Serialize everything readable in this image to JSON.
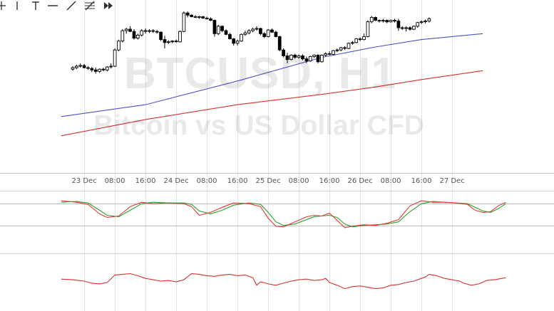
{
  "toolbar": {
    "tools": [
      {
        "name": "crosshair-icon"
      },
      {
        "name": "vertical-line-icon"
      },
      {
        "name": "horizontal-line-icon"
      },
      {
        "name": "trend-line-icon"
      },
      {
        "name": "fibonacci-icon"
      },
      {
        "name": "fast-forward-icon"
      }
    ]
  },
  "watermark": {
    "symbol": "BTCUSD, H1",
    "description": "Bitcoin vs US Dollar CFD"
  },
  "colors": {
    "up_candle": "#ffffff",
    "down_candle": "#000000",
    "sma_fast": "#5050c8",
    "sma_slow": "#d83030",
    "stoch_k": "#e03a3a",
    "stoch_d": "#2ea02e",
    "rsi": "#d83030",
    "grid": "#e4e4e4"
  },
  "chart_data": {
    "type": "candlestick",
    "symbol": "BTCUSD",
    "timeframe": "H1",
    "x_tick_labels": [
      "23 Dec",
      "08:00",
      "16:00",
      "24 Dec",
      "08:00",
      "16:00",
      "25 Dec",
      "08:00",
      "16:00",
      "26 Dec",
      "08:00",
      "16:00",
      "27 Dec"
    ],
    "x_tick_hours": [
      24,
      32,
      40,
      48,
      56,
      64,
      72,
      80,
      88,
      96,
      104,
      112,
      120
    ],
    "price_ylim": [
      0,
      100
    ],
    "candles_hour_start": 21,
    "candles": [
      [
        60,
        62,
        59,
        61
      ],
      [
        61,
        63,
        60,
        62
      ],
      [
        62,
        64,
        61,
        62.5
      ],
      [
        62.5,
        63.5,
        60.5,
        61
      ],
      [
        61,
        62,
        59.5,
        60.5
      ],
      [
        60.5,
        61.5,
        58,
        59.5
      ],
      [
        59.5,
        61,
        57,
        58.5
      ],
      [
        58.5,
        60.5,
        57.5,
        60
      ],
      [
        60,
        61,
        58.5,
        59.5
      ],
      [
        59.5,
        62,
        58.5,
        61.5
      ],
      [
        61.5,
        64,
        60.5,
        62
      ],
      [
        62,
        74,
        61.5,
        73
      ],
      [
        73,
        80,
        72,
        79
      ],
      [
        79,
        87,
        78,
        86
      ],
      [
        86,
        88,
        84,
        87
      ],
      [
        87,
        89,
        85,
        85.5
      ],
      [
        85.5,
        87,
        80,
        81
      ],
      [
        81,
        84,
        80,
        83
      ],
      [
        83,
        87,
        82,
        86
      ],
      [
        86,
        87.5,
        84,
        85.5
      ],
      [
        85.5,
        87,
        84.5,
        86
      ],
      [
        86,
        87,
        84.5,
        85.5
      ],
      [
        85.5,
        86.5,
        84,
        85
      ],
      [
        85,
        85.5,
        79,
        80
      ],
      [
        80,
        82.5,
        74,
        78
      ],
      [
        78,
        79.5,
        77,
        78.5
      ],
      [
        78.5,
        79.5,
        77.5,
        79
      ],
      [
        79,
        80,
        78,
        78.5
      ],
      [
        78.5,
        86,
        78,
        85.5
      ],
      [
        85.5,
        99,
        85,
        98
      ],
      [
        98,
        99,
        95,
        96.5
      ],
      [
        96.5,
        97,
        95,
        95.5
      ],
      [
        95.5,
        96.5,
        94.5,
        95
      ],
      [
        95,
        96,
        94,
        95.5
      ],
      [
        95.5,
        96,
        94,
        94.5
      ],
      [
        94.5,
        95.5,
        93.5,
        94
      ],
      [
        94,
        95,
        92.5,
        93
      ],
      [
        93,
        93.5,
        82,
        84
      ],
      [
        84,
        90,
        83,
        89
      ],
      [
        89,
        89.5,
        85,
        86
      ],
      [
        86,
        87,
        83,
        83.5
      ],
      [
        83.5,
        84.5,
        80,
        80.5
      ],
      [
        80.5,
        81,
        76,
        77.5
      ],
      [
        77.5,
        80,
        76,
        79
      ],
      [
        79,
        84,
        78.5,
        83.5
      ],
      [
        83.5,
        86,
        82.5,
        84.5
      ],
      [
        84.5,
        87,
        83.5,
        86
      ],
      [
        86,
        88,
        85,
        87
      ],
      [
        87,
        89,
        86,
        87.5
      ],
      [
        87.5,
        88,
        83,
        84
      ],
      [
        84,
        85,
        81,
        82
      ],
      [
        82,
        87,
        81.5,
        86.5
      ],
      [
        86.5,
        87.5,
        84.5,
        85
      ],
      [
        85,
        86,
        81.5,
        82
      ],
      [
        82,
        82.5,
        72,
        73
      ],
      [
        73,
        74,
        68,
        69
      ],
      [
        69,
        71,
        64,
        66.5
      ],
      [
        66.5,
        70,
        66,
        69.5
      ],
      [
        69.5,
        70.5,
        67,
        68
      ],
      [
        68,
        70,
        67,
        69
      ],
      [
        69,
        70,
        66,
        67
      ],
      [
        67,
        68.5,
        64,
        65.5
      ],
      [
        65.5,
        69,
        65,
        68.5
      ],
      [
        68.5,
        70,
        67.5,
        69.5
      ],
      [
        69.5,
        70,
        64,
        65
      ],
      [
        65,
        70,
        64.5,
        69.5
      ],
      [
        69.5,
        71.5,
        68.5,
        70.5
      ],
      [
        70.5,
        72,
        69.5,
        70
      ],
      [
        70,
        73,
        69.5,
        72.5
      ],
      [
        72.5,
        74,
        71.5,
        73
      ],
      [
        73,
        75,
        72,
        74.5
      ],
      [
        74.5,
        75.5,
        73,
        74
      ],
      [
        74,
        78,
        73.5,
        77.5
      ],
      [
        77.5,
        79,
        76.5,
        78
      ],
      [
        78,
        81,
        77.5,
        80.5
      ],
      [
        80.5,
        81.5,
        79,
        80
      ],
      [
        80,
        84,
        79.5,
        82
      ],
      [
        82,
        93,
        81.5,
        92
      ],
      [
        92,
        96,
        91,
        95
      ],
      [
        95,
        95.5,
        92.5,
        93
      ],
      [
        93,
        93.5,
        91.5,
        92.5
      ],
      [
        92.5,
        94,
        91.5,
        93
      ],
      [
        93,
        93.5,
        91,
        92
      ],
      [
        92,
        93.5,
        91.5,
        93
      ],
      [
        93,
        94,
        91.5,
        92.5
      ],
      [
        92.5,
        94,
        86,
        88
      ],
      [
        88,
        89,
        86.5,
        87.5
      ],
      [
        87.5,
        89,
        85.5,
        88
      ],
      [
        88,
        89,
        86,
        87
      ],
      [
        87,
        89.5,
        86.5,
        89
      ],
      [
        89,
        92,
        88,
        91.5
      ],
      [
        91.5,
        93,
        90.5,
        92
      ],
      [
        92,
        93.5,
        91,
        92.5
      ],
      [
        92.5,
        95,
        91.5,
        94
      ]
    ],
    "sma_fast": {
      "name": "",
      "points": [
        [
          18,
          28
        ],
        [
          40,
          36
        ],
        [
          64,
          52
        ],
        [
          86,
          68
        ],
        [
          100,
          75
        ],
        [
          112,
          80
        ],
        [
          128,
          84
        ]
      ]
    },
    "sma_slow": {
      "name": "",
      "points": [
        [
          18,
          15
        ],
        [
          40,
          26
        ],
        [
          64,
          36
        ],
        [
          86,
          43
        ],
        [
          100,
          48
        ],
        [
          112,
          53
        ],
        [
          128,
          59
        ]
      ]
    },
    "stochastic": {
      "ylim": [
        0,
        100
      ],
      "levels": [
        20,
        80
      ],
      "k": [
        [
          18,
          88
        ],
        [
          22,
          84
        ],
        [
          25,
          78
        ],
        [
          28,
          52
        ],
        [
          30,
          42
        ],
        [
          33,
          46
        ],
        [
          36,
          72
        ],
        [
          39,
          84
        ],
        [
          42,
          80
        ],
        [
          46,
          82
        ],
        [
          50,
          80
        ],
        [
          52,
          72
        ],
        [
          54,
          48
        ],
        [
          57,
          56
        ],
        [
          60,
          70
        ],
        [
          63,
          82
        ],
        [
          67,
          80
        ],
        [
          70,
          72
        ],
        [
          72,
          40
        ],
        [
          74,
          18
        ],
        [
          76,
          16
        ],
        [
          79,
          30
        ],
        [
          82,
          44
        ],
        [
          84,
          48
        ],
        [
          86,
          46
        ],
        [
          88,
          54
        ],
        [
          90,
          34
        ],
        [
          92,
          14
        ],
        [
          94,
          18
        ],
        [
          97,
          22
        ],
        [
          100,
          20
        ],
        [
          103,
          26
        ],
        [
          106,
          36
        ],
        [
          109,
          74
        ],
        [
          112,
          88
        ],
        [
          115,
          84
        ],
        [
          118,
          84
        ],
        [
          121,
          82
        ],
        [
          124,
          78
        ],
        [
          126,
          62
        ],
        [
          128,
          56
        ],
        [
          130,
          58
        ],
        [
          132,
          74
        ],
        [
          134,
          84
        ]
      ],
      "d": [
        [
          18,
          84
        ],
        [
          22,
          86
        ],
        [
          25,
          82
        ],
        [
          28,
          62
        ],
        [
          30,
          48
        ],
        [
          33,
          44
        ],
        [
          36,
          62
        ],
        [
          39,
          80
        ],
        [
          42,
          84
        ],
        [
          46,
          82
        ],
        [
          50,
          82
        ],
        [
          52,
          78
        ],
        [
          54,
          60
        ],
        [
          57,
          52
        ],
        [
          60,
          62
        ],
        [
          63,
          76
        ],
        [
          67,
          82
        ],
        [
          70,
          78
        ],
        [
          72,
          56
        ],
        [
          74,
          30
        ],
        [
          76,
          20
        ],
        [
          79,
          24
        ],
        [
          82,
          36
        ],
        [
          84,
          44
        ],
        [
          86,
          46
        ],
        [
          88,
          48
        ],
        [
          90,
          42
        ],
        [
          92,
          24
        ],
        [
          94,
          16
        ],
        [
          97,
          20
        ],
        [
          100,
          22
        ],
        [
          103,
          24
        ],
        [
          106,
          30
        ],
        [
          109,
          58
        ],
        [
          112,
          80
        ],
        [
          115,
          86
        ],
        [
          118,
          84
        ],
        [
          121,
          82
        ],
        [
          124,
          80
        ],
        [
          126,
          70
        ],
        [
          128,
          60
        ],
        [
          130,
          56
        ],
        [
          132,
          66
        ],
        [
          134,
          80
        ]
      ]
    },
    "rsi": {
      "ylim": [
        0,
        100
      ],
      "values": [
        [
          18,
          58
        ],
        [
          21,
          56
        ],
        [
          24,
          52
        ],
        [
          26,
          46
        ],
        [
          28,
          44
        ],
        [
          30,
          48
        ],
        [
          32,
          70
        ],
        [
          34,
          72
        ],
        [
          36,
          74
        ],
        [
          38,
          68
        ],
        [
          40,
          60
        ],
        [
          42,
          56
        ],
        [
          44,
          52
        ],
        [
          46,
          54
        ],
        [
          48,
          50
        ],
        [
          50,
          56
        ],
        [
          52,
          74
        ],
        [
          54,
          72
        ],
        [
          56,
          68
        ],
        [
          58,
          66
        ],
        [
          60,
          70
        ],
        [
          62,
          72
        ],
        [
          64,
          68
        ],
        [
          66,
          70
        ],
        [
          68,
          62
        ],
        [
          69,
          40
        ],
        [
          70,
          50
        ],
        [
          72,
          44
        ],
        [
          74,
          40
        ],
        [
          76,
          46
        ],
        [
          78,
          52
        ],
        [
          80,
          56
        ],
        [
          82,
          58
        ],
        [
          84,
          54
        ],
        [
          86,
          56
        ],
        [
          87,
          60
        ],
        [
          88,
          48
        ],
        [
          90,
          40
        ],
        [
          92,
          30
        ],
        [
          94,
          36
        ],
        [
          96,
          38
        ],
        [
          98,
          34
        ],
        [
          100,
          30
        ],
        [
          102,
          32
        ],
        [
          104,
          40
        ],
        [
          106,
          42
        ],
        [
          108,
          48
        ],
        [
          110,
          52
        ],
        [
          112,
          60
        ],
        [
          113,
          64
        ],
        [
          114,
          72
        ],
        [
          116,
          68
        ],
        [
          118,
          60
        ],
        [
          120,
          56
        ],
        [
          122,
          52
        ],
        [
          123,
          46
        ],
        [
          125,
          40
        ],
        [
          127,
          44
        ],
        [
          129,
          54
        ],
        [
          131,
          56
        ],
        [
          133,
          60
        ],
        [
          134,
          62
        ]
      ]
    }
  }
}
